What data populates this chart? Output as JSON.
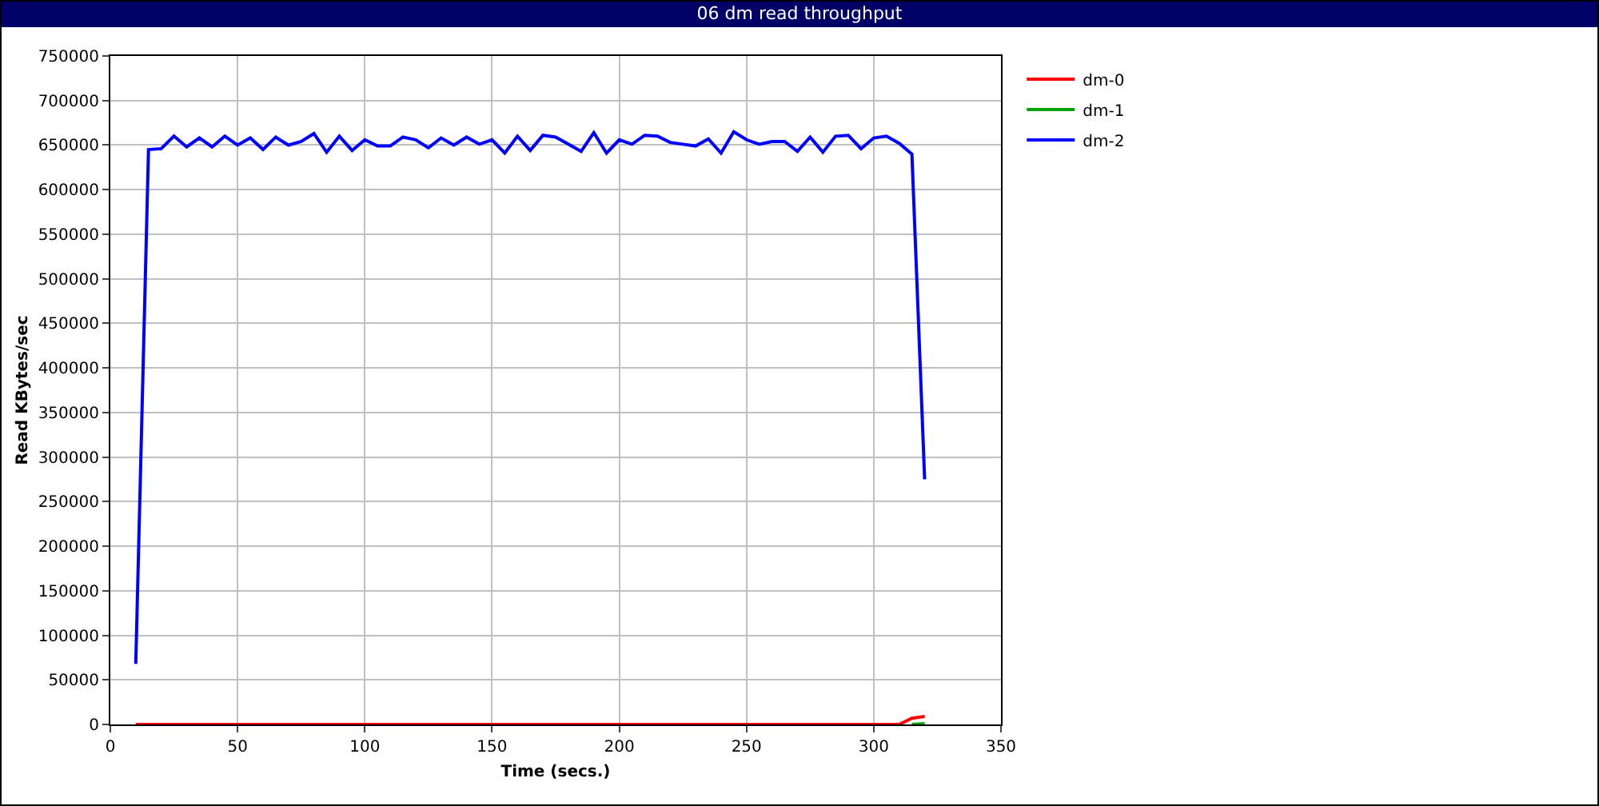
{
  "chart_data": {
    "type": "line",
    "title": "06 dm read throughput",
    "xlabel": "Time (secs.)",
    "ylabel": "Read KBytes/sec",
    "xlim": [
      0,
      350
    ],
    "xticks": [
      0,
      50,
      100,
      150,
      200,
      250,
      300,
      350
    ],
    "ylim": [
      0,
      750000
    ],
    "yticks": [
      0,
      50000,
      100000,
      150000,
      200000,
      250000,
      300000,
      350000,
      400000,
      450000,
      500000,
      550000,
      600000,
      650000,
      700000,
      750000
    ],
    "grid": true,
    "legend": "top right",
    "marker": "none",
    "line_style": "solid",
    "series": [
      {
        "name": "dm-0",
        "color": "#ff0000",
        "x": [
          10,
          310,
          315,
          320
        ],
        "values": [
          0,
          0,
          7000,
          9000
        ]
      },
      {
        "name": "dm-1",
        "color": "#00a000",
        "x": [
          315,
          320
        ],
        "values": [
          0,
          1000
        ]
      },
      {
        "name": "dm-2",
        "color": "#0000ff",
        "x": [
          10,
          15,
          20,
          25,
          30,
          35,
          40,
          45,
          50,
          55,
          60,
          65,
          70,
          75,
          80,
          85,
          90,
          95,
          100,
          105,
          110,
          115,
          120,
          125,
          130,
          135,
          140,
          145,
          150,
          155,
          160,
          165,
          170,
          175,
          180,
          185,
          190,
          195,
          200,
          205,
          210,
          215,
          220,
          225,
          230,
          235,
          240,
          245,
          250,
          255,
          260,
          265,
          270,
          275,
          280,
          285,
          290,
          295,
          300,
          305,
          310,
          315,
          320
        ],
        "values": [
          68000,
          645000,
          646000,
          660000,
          648000,
          658000,
          648000,
          660000,
          650000,
          658000,
          645000,
          659000,
          650000,
          654000,
          663000,
          642000,
          660000,
          644000,
          656000,
          649000,
          649000,
          659000,
          656000,
          647000,
          658000,
          650000,
          659000,
          651000,
          656000,
          641000,
          660000,
          644000,
          661000,
          659000,
          651000,
          643000,
          664000,
          641000,
          656000,
          651000,
          661000,
          660000,
          653000,
          651000,
          649000,
          657000,
          641000,
          665000,
          656000,
          651000,
          654000,
          654000,
          643000,
          659000,
          642000,
          660000,
          661000,
          646000,
          658000,
          660000,
          652000,
          640000,
          275000
        ]
      }
    ]
  }
}
